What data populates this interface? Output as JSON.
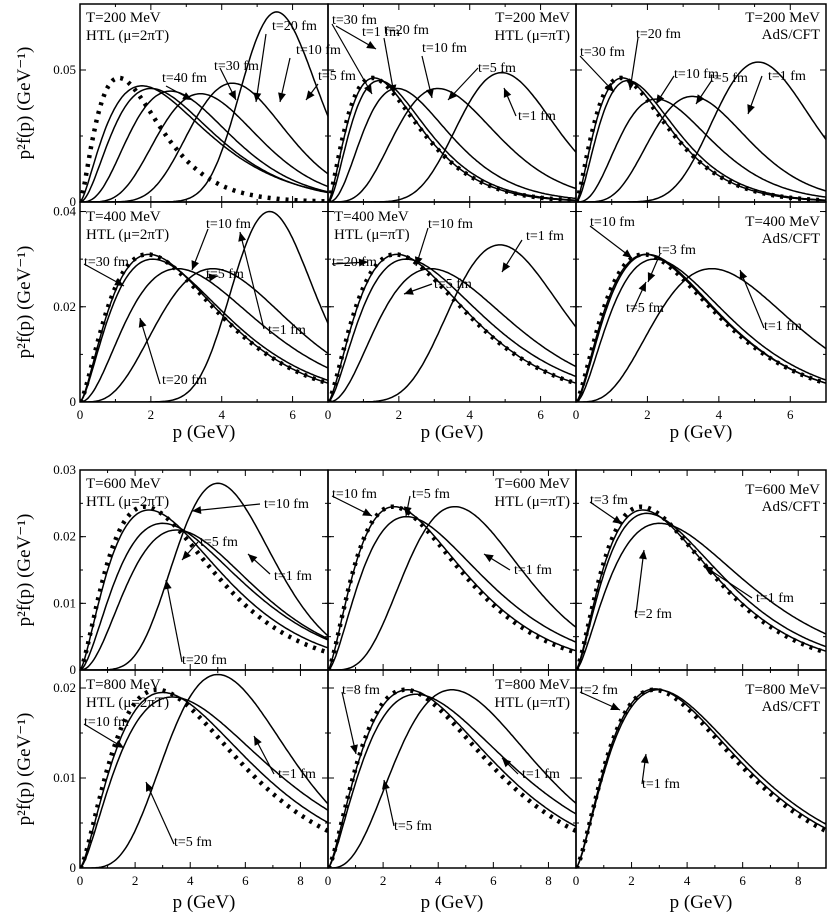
{
  "figure": {
    "ylabel_row1": "p²f(p) (GeV⁻¹)",
    "xlabel": "p (GeV)"
  },
  "chart_data": [
    {
      "id": "r0c0",
      "type": "line",
      "T": "T=200 MeV",
      "method": "HTL",
      "mu": "(μ=2πT)",
      "xlim": [
        0,
        7
      ],
      "ylim": [
        0,
        0.075
      ],
      "xticks": [
        0,
        2,
        4,
        6
      ],
      "yticks": [
        0,
        0.05
      ],
      "ytick_labels": [
        "0",
        "0.05"
      ],
      "show_xticklabels": false,
      "show_ylabel": true,
      "series": [
        {
          "name": "t=1 fm",
          "peak_p": 5.55,
          "peak_y": 0.072,
          "width": 0.75
        },
        {
          "name": "t=5 fm",
          "peak_p": 4.3,
          "peak_y": 0.045,
          "width": 0.95
        },
        {
          "name": "t=10 fm",
          "peak_p": 3.4,
          "peak_y": 0.041,
          "width": 1.0
        },
        {
          "name": "t=20 fm",
          "peak_p": 2.55,
          "peak_y": 0.042,
          "width": 1.0
        },
        {
          "name": "t=30 fm",
          "peak_p": 2.0,
          "peak_y": 0.043,
          "width": 1.0
        },
        {
          "name": "t=40 fm",
          "peak_p": 1.75,
          "peak_y": 0.044,
          "width": 1.0
        }
      ],
      "equilibrium": {
        "peak_p": 1.1,
        "peak_y": 0.047,
        "width": 0.75,
        "dotted": true
      },
      "annotations": [
        {
          "text": "t=1 fm"
        },
        {
          "text": "t=5 fm"
        },
        {
          "text": "t=10 fm"
        },
        {
          "text": "t=20 fm"
        },
        {
          "text": "t=30 fm"
        },
        {
          "text": "t=40 fm"
        }
      ]
    },
    {
      "id": "r0c1",
      "type": "line",
      "T": "T=200 MeV",
      "method": "HTL",
      "mu": "(μ=πT)",
      "xlim": [
        0,
        7
      ],
      "ylim": [
        0,
        0.075
      ],
      "xticks": [
        0,
        2,
        4,
        6
      ],
      "yticks": [
        0,
        0.05
      ],
      "ytick_labels": [
        "0",
        "0.05"
      ],
      "show_xticklabels": false,
      "show_ylabel": false,
      "series": [
        {
          "name": "t=1 fm",
          "peak_p": 4.9,
          "peak_y": 0.049,
          "width": 0.95
        },
        {
          "name": "t=5 fm",
          "peak_p": 3.1,
          "peak_y": 0.043,
          "width": 1.0
        },
        {
          "name": "t=10 fm",
          "peak_p": 1.95,
          "peak_y": 0.043,
          "width": 0.85
        },
        {
          "name": "t=20 fm",
          "peak_p": 1.45,
          "peak_y": 0.046,
          "width": 0.75
        },
        {
          "name": "t=30 fm",
          "peak_p": 1.3,
          "peak_y": 0.047,
          "width": 0.72
        }
      ],
      "equilibrium": {
        "peak_p": 1.25,
        "peak_y": 0.047,
        "width": 0.72,
        "dotted": true
      },
      "annotations": [
        {
          "text": "t=30 fm"
        },
        {
          "text": "t=20 fm"
        },
        {
          "text": "t=10 fm"
        },
        {
          "text": "t=5 fm"
        },
        {
          "text": "t=1 fm"
        }
      ]
    },
    {
      "id": "r0c2",
      "type": "line",
      "T": "T=200 MeV",
      "method": "AdS/CFT",
      "mu": "",
      "xlim": [
        0,
        7
      ],
      "ylim": [
        0,
        0.075
      ],
      "xticks": [
        0,
        2,
        4,
        6
      ],
      "yticks": [
        0,
        0.05
      ],
      "ytick_labels": [
        "0",
        "0.05"
      ],
      "show_xticklabels": false,
      "show_ylabel": false,
      "series": [
        {
          "name": "t=1 fm",
          "peak_p": 5.1,
          "peak_y": 0.053,
          "width": 0.95
        },
        {
          "name": "t=5 fm",
          "peak_p": 3.25,
          "peak_y": 0.04,
          "width": 0.95
        },
        {
          "name": "t=10 fm",
          "peak_p": 2.25,
          "peak_y": 0.039,
          "width": 0.9
        },
        {
          "name": "t=20 fm",
          "peak_p": 1.45,
          "peak_y": 0.046,
          "width": 0.75
        },
        {
          "name": "t=30 fm",
          "peak_p": 1.3,
          "peak_y": 0.047,
          "width": 0.72
        }
      ],
      "equilibrium": {
        "peak_p": 1.25,
        "peak_y": 0.047,
        "width": 0.72,
        "dotted": true
      },
      "annotations": [
        {
          "text": "t=30 fm"
        },
        {
          "text": "t=20 fm"
        },
        {
          "text": "t=10 fm"
        },
        {
          "text": "t=5 fm"
        },
        {
          "text": "t=1 fm"
        }
      ]
    },
    {
      "id": "r1c0",
      "type": "line",
      "T": "T=400 MeV",
      "method": "HTL",
      "mu": "(μ=2πT)",
      "xlim": [
        0,
        7
      ],
      "ylim": [
        0,
        0.042
      ],
      "xticks": [
        0,
        2,
        4,
        6
      ],
      "yticks": [
        0,
        0.02,
        0.04
      ],
      "ytick_labels": [
        "0",
        "0.02",
        "0.04"
      ],
      "show_xticklabels": true,
      "show_ylabel": true,
      "series": [
        {
          "name": "t=1 fm",
          "peak_p": 5.35,
          "peak_y": 0.04,
          "width": 0.8
        },
        {
          "name": "t=5 fm",
          "peak_p": 3.75,
          "peak_y": 0.028,
          "width": 1.3
        },
        {
          "name": "t=10 fm",
          "peak_p": 2.75,
          "peak_y": 0.028,
          "width": 1.3
        },
        {
          "name": "t=20 fm",
          "peak_p": 2.05,
          "peak_y": 0.03,
          "width": 1.15
        },
        {
          "name": "t=30 fm",
          "peak_p": 1.95,
          "peak_y": 0.031,
          "width": 1.1
        }
      ],
      "equilibrium": {
        "peak_p": 1.9,
        "peak_y": 0.031,
        "width": 1.1,
        "dotted": true
      },
      "annotations": [
        {
          "text": "t=10 fm"
        },
        {
          "text": "t=5 fm"
        },
        {
          "text": "t=1 fm"
        },
        {
          "text": "t=30 fm"
        },
        {
          "text": "t=20 fm"
        }
      ]
    },
    {
      "id": "r1c1",
      "type": "line",
      "T": "T=400 MeV",
      "method": "HTL",
      "mu": "(μ=πT)",
      "xlim": [
        0,
        7
      ],
      "ylim": [
        0,
        0.042
      ],
      "xticks": [
        0,
        2,
        4,
        6
      ],
      "yticks": [
        0,
        0.02,
        0.04
      ],
      "ytick_labels": [
        "0",
        "0.02",
        "0.04"
      ],
      "show_xticklabels": true,
      "show_ylabel": false,
      "series": [
        {
          "name": "t=1 fm",
          "peak_p": 4.85,
          "peak_y": 0.033,
          "width": 1.1
        },
        {
          "name": "t=5 fm",
          "peak_p": 2.9,
          "peak_y": 0.028,
          "width": 1.3
        },
        {
          "name": "t=10 fm",
          "peak_p": 2.2,
          "peak_y": 0.03,
          "width": 1.2
        },
        {
          "name": "t=20 fm",
          "peak_p": 1.95,
          "peak_y": 0.031,
          "width": 1.1
        }
      ],
      "equilibrium": {
        "peak_p": 1.9,
        "peak_y": 0.031,
        "width": 1.1,
        "dotted": true
      },
      "annotations": [
        {
          "text": "t=10 fm"
        },
        {
          "text": "t=1 fm"
        },
        {
          "text": "t=20 fm"
        },
        {
          "text": "t=5 fm"
        }
      ]
    },
    {
      "id": "r1c2",
      "type": "line",
      "T": "T=400 MeV",
      "method": "AdS/CFT",
      "mu": "",
      "xlim": [
        0,
        7
      ],
      "ylim": [
        0,
        0.042
      ],
      "xticks": [
        0,
        2,
        4,
        6
      ],
      "yticks": [
        0,
        0.02,
        0.04
      ],
      "ytick_labels": [
        "0",
        "0.02",
        "0.04"
      ],
      "show_xticklabels": true,
      "show_ylabel": false,
      "series": [
        {
          "name": "t=1 fm",
          "peak_p": 3.8,
          "peak_y": 0.028,
          "width": 1.35
        },
        {
          "name": "t=3 fm",
          "peak_p": 2.2,
          "peak_y": 0.03,
          "width": 1.15
        },
        {
          "name": "t=5 fm",
          "peak_p": 2.0,
          "peak_y": 0.031,
          "width": 1.1
        },
        {
          "name": "t=10 fm",
          "peak_p": 1.95,
          "peak_y": 0.031,
          "width": 1.1
        }
      ],
      "equilibrium": {
        "peak_p": 1.9,
        "peak_y": 0.031,
        "width": 1.1,
        "dotted": true
      },
      "annotations": [
        {
          "text": "t=10 fm"
        },
        {
          "text": "t=3 fm"
        },
        {
          "text": "t=5 fm"
        },
        {
          "text": "t=1 fm"
        }
      ]
    },
    {
      "id": "r2c0",
      "type": "line",
      "T": "T=600 MeV",
      "method": "HTL",
      "mu": "(μ=2πT)",
      "xlim": [
        0,
        9
      ],
      "ylim": [
        0,
        0.03
      ],
      "xticks": [
        0,
        2,
        4,
        6,
        8
      ],
      "yticks": [
        0,
        0.01,
        0.02,
        0.03
      ],
      "ytick_labels": [
        "0",
        "0.01",
        "0.02",
        "0.03"
      ],
      "show_xticklabels": false,
      "show_ylabel": true,
      "series": [
        {
          "name": "t=1 fm",
          "peak_p": 5.0,
          "peak_y": 0.028,
          "width": 1.25
        },
        {
          "name": "t=5 fm",
          "peak_p": 3.5,
          "peak_y": 0.021,
          "width": 1.6
        },
        {
          "name": "t=10 fm",
          "peak_p": 3.0,
          "peak_y": 0.022,
          "width": 1.6
        },
        {
          "name": "t=20 fm",
          "peak_p": 2.5,
          "peak_y": 0.024,
          "width": 1.5
        }
      ],
      "equilibrium": {
        "peak_p": 2.35,
        "peak_y": 0.0245,
        "width": 1.45,
        "dotted": true
      },
      "annotations": [
        {
          "text": "t=10 fm"
        },
        {
          "text": "t=5 fm"
        },
        {
          "text": "t=1 fm"
        },
        {
          "text": "t=20 fm"
        }
      ]
    },
    {
      "id": "r2c1",
      "type": "line",
      "T": "T=600 MeV",
      "method": "HTL",
      "mu": "(μ=πT)",
      "xlim": [
        0,
        9
      ],
      "ylim": [
        0,
        0.03
      ],
      "xticks": [
        0,
        2,
        4,
        6,
        8
      ],
      "yticks": [
        0,
        0.01,
        0.02,
        0.03
      ],
      "ytick_labels": [
        "0",
        "0.01",
        "0.02",
        "0.03"
      ],
      "show_xticklabels": false,
      "show_ylabel": false,
      "series": [
        {
          "name": "t=1 fm",
          "peak_p": 4.6,
          "peak_y": 0.0245,
          "width": 1.5
        },
        {
          "name": "t=5 fm",
          "peak_p": 2.85,
          "peak_y": 0.023,
          "width": 1.55
        },
        {
          "name": "t=10 fm",
          "peak_p": 2.4,
          "peak_y": 0.0245,
          "width": 1.45
        }
      ],
      "equilibrium": {
        "peak_p": 2.35,
        "peak_y": 0.0245,
        "width": 1.45,
        "dotted": true
      },
      "annotations": [
        {
          "text": "t=10 fm"
        },
        {
          "text": "t=5 fm"
        },
        {
          "text": "t=1 fm"
        }
      ]
    },
    {
      "id": "r2c2",
      "type": "line",
      "T": "T=600 MeV",
      "method": "AdS/CFT",
      "mu": "",
      "xlim": [
        0,
        9
      ],
      "ylim": [
        0,
        0.03
      ],
      "xticks": [
        0,
        2,
        4,
        6,
        8
      ],
      "yticks": [
        0,
        0.01,
        0.02,
        0.03
      ],
      "ytick_labels": [
        "0",
        "0.01",
        "0.02",
        "0.03"
      ],
      "show_xticklabels": false,
      "show_ylabel": false,
      "series": [
        {
          "name": "t=1 fm",
          "peak_p": 3.0,
          "peak_y": 0.022,
          "width": 1.7
        },
        {
          "name": "t=2 fm",
          "peak_p": 2.55,
          "peak_y": 0.0235,
          "width": 1.55
        },
        {
          "name": "t=3 fm",
          "peak_p": 2.4,
          "peak_y": 0.024,
          "width": 1.5
        }
      ],
      "equilibrium": {
        "peak_p": 2.35,
        "peak_y": 0.0245,
        "width": 1.45,
        "dotted": true
      },
      "annotations": [
        {
          "text": "t=3 fm"
        },
        {
          "text": "t=2 fm"
        },
        {
          "text": "t=1 fm"
        }
      ]
    },
    {
      "id": "r3c0",
      "type": "line",
      "T": "T=800 MeV",
      "method": "HTL",
      "mu": "(μ=2πT)",
      "xlim": [
        0,
        9
      ],
      "ylim": [
        0,
        0.022
      ],
      "xticks": [
        0,
        2,
        4,
        6,
        8
      ],
      "yticks": [
        0,
        0.01,
        0.02
      ],
      "ytick_labels": [
        "0",
        "0.01",
        "0.02"
      ],
      "show_xticklabels": true,
      "show_ylabel": true,
      "series": [
        {
          "name": "t=1 fm",
          "peak_p": 5.0,
          "peak_y": 0.0215,
          "width": 1.55
        },
        {
          "name": "t=5 fm",
          "peak_p": 3.35,
          "peak_y": 0.019,
          "width": 1.9
        },
        {
          "name": "t=10 fm",
          "peak_p": 3.0,
          "peak_y": 0.0195,
          "width": 1.9
        }
      ],
      "equilibrium": {
        "peak_p": 2.8,
        "peak_y": 0.0198,
        "width": 1.85,
        "dotted": true
      },
      "annotations": [
        {
          "text": "t=10 fm"
        },
        {
          "text": "t=5 fm"
        },
        {
          "text": "t=1 fm"
        }
      ]
    },
    {
      "id": "r3c1",
      "type": "line",
      "T": "T=800 MeV",
      "method": "HTL",
      "mu": "(μ=πT)",
      "xlim": [
        0,
        9
      ],
      "ylim": [
        0,
        0.022
      ],
      "xticks": [
        0,
        2,
        4,
        6,
        8
      ],
      "yticks": [
        0,
        0.01,
        0.02
      ],
      "ytick_labels": [
        "0",
        "0.01",
        "0.02"
      ],
      "show_xticklabels": true,
      "show_ylabel": false,
      "series": [
        {
          "name": "t=1 fm",
          "peak_p": 4.5,
          "peak_y": 0.0198,
          "width": 1.75
        },
        {
          "name": "t=5 fm",
          "peak_p": 3.2,
          "peak_y": 0.0193,
          "width": 1.9
        },
        {
          "name": "t=8 fm",
          "peak_p": 2.9,
          "peak_y": 0.0198,
          "width": 1.85
        }
      ],
      "equilibrium": {
        "peak_p": 2.8,
        "peak_y": 0.0198,
        "width": 1.85,
        "dotted": true
      },
      "annotations": [
        {
          "text": "t=8 fm"
        },
        {
          "text": "t=5 fm"
        },
        {
          "text": "t=1 fm"
        }
      ]
    },
    {
      "id": "r3c2",
      "type": "line",
      "T": "T=800 MeV",
      "method": "AdS/CFT",
      "mu": "",
      "xlim": [
        0,
        9
      ],
      "ylim": [
        0,
        0.022
      ],
      "xticks": [
        0,
        2,
        4,
        6,
        8
      ],
      "yticks": [
        0,
        0.01,
        0.02
      ],
      "ytick_labels": [
        "0",
        "0.01",
        "0.02"
      ],
      "show_xticklabels": true,
      "show_ylabel": false,
      "series": [
        {
          "name": "t=1 fm",
          "peak_p": 2.95,
          "peak_y": 0.0198,
          "width": 1.9
        },
        {
          "name": "t=2 fm",
          "peak_p": 2.85,
          "peak_y": 0.0199,
          "width": 1.85
        }
      ],
      "equilibrium": {
        "peak_p": 2.8,
        "peak_y": 0.0198,
        "width": 1.85,
        "dotted": true
      },
      "annotations": [
        {
          "text": "t=2 fm"
        },
        {
          "text": "t=1 fm"
        }
      ]
    }
  ]
}
